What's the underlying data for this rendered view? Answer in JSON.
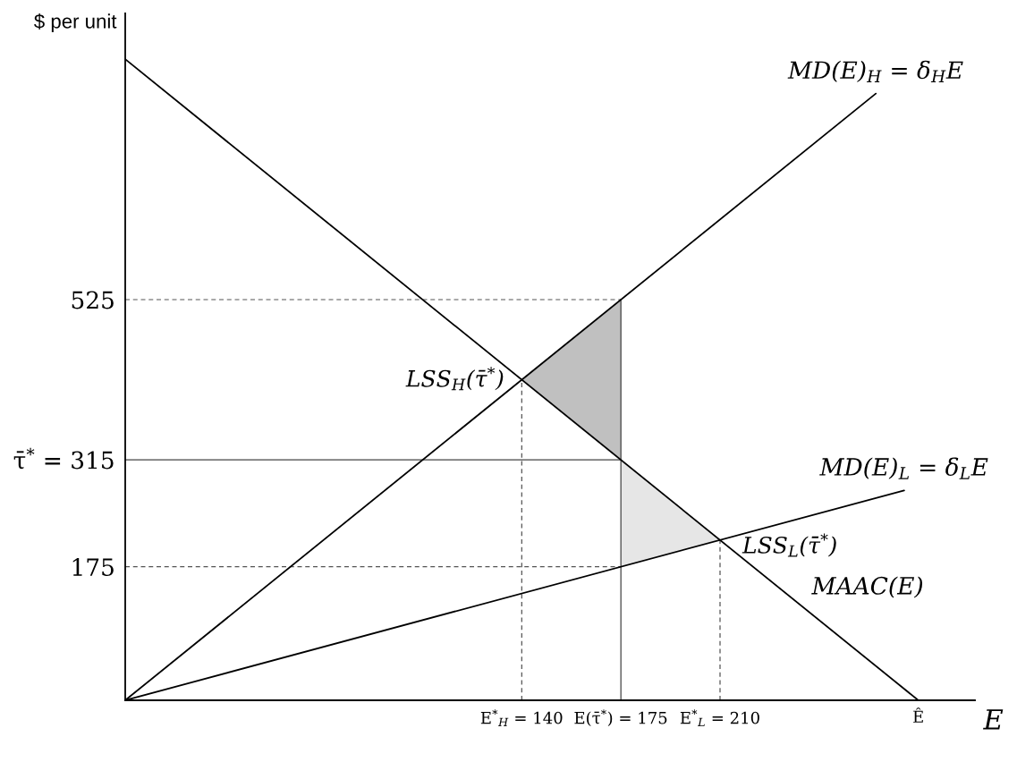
{
  "chart_data": {
    "type": "line",
    "xlabel": "E",
    "ylabel": "$ per unit",
    "xlim": [
      0,
      300
    ],
    "ylim": [
      0,
      900
    ],
    "xticks": [
      {
        "value": 140,
        "label": "E$^{*}$$_{H}$ = 140"
      },
      {
        "value": 175,
        "label": "E(τ̄$^{*}$) = 175"
      },
      {
        "value": 210,
        "label": "E$^{*}$$_{L}$ = 210"
      },
      {
        "value": 280,
        "label": "Ê"
      }
    ],
    "yticks": [
      175,
      {
        "value": 315,
        "label": "τ̄$^{*}$ = 315"
      },
      525
    ],
    "annotations": [
      {
        "text": "LSS$_{H}$(τ̄$^{*}$)",
        "x": 140,
        "y": 420
      },
      {
        "text": "LSS$_{L}$(τ̄$^{*}$)",
        "x": 210,
        "y": 210
      }
    ],
    "series": [
      {
        "color": "#c0c0c0",
        "x": [
          140,
          175
        ],
        "values": [
          null,
          null
        ],
        "lower": [
          420,
          315
        ],
        "upper": [
          420,
          525
        ]
      },
      {
        "color": "#e6e6e6",
        "x": [
          175,
          210
        ],
        "values": [
          null,
          null
        ],
        "lower": [
          175,
          210
        ],
        "upper": [
          315,
          210
        ]
      },
      {
        "color": "#555555",
        "line_style": "dashed",
        "x": [
          0,
          175
        ],
        "values": [
          525,
          525
        ]
      },
      {
        "color": "#555555",
        "line_style": "dashed",
        "x": [
          0,
          175
        ],
        "values": [
          175,
          175
        ]
      },
      {
        "color": "#555555",
        "line_style": "dashed",
        "x": [
          140,
          140
        ],
        "values": [
          0,
          420
        ]
      },
      {
        "color": "#555555",
        "line_style": "dashed",
        "x": [
          210,
          210
        ],
        "values": [
          0,
          210
        ]
      },
      {
        "color": "#444444",
        "line_style": "solid",
        "x": [
          0,
          175
        ],
        "values": [
          315,
          315
        ]
      },
      {
        "color": "#444444",
        "line_style": "solid",
        "x": [
          175,
          175
        ],
        "values": [
          0,
          525
        ]
      },
      {
        "name": "MAAC(E)",
        "color": "#000000",
        "x": [
          0,
          280
        ],
        "values": [
          840,
          0
        ]
      },
      {
        "name": "MD(E)$_{H}$ = δ$_{H}$E",
        "color": "#000000",
        "x": [
          0,
          265
        ],
        "values": [
          0,
          795
        ]
      },
      {
        "name": "MD(E)$_{L}$ = δ$_{L}$E",
        "color": "#000000",
        "x": [
          0,
          275
        ],
        "values": [
          0,
          275
        ]
      }
    ]
  }
}
